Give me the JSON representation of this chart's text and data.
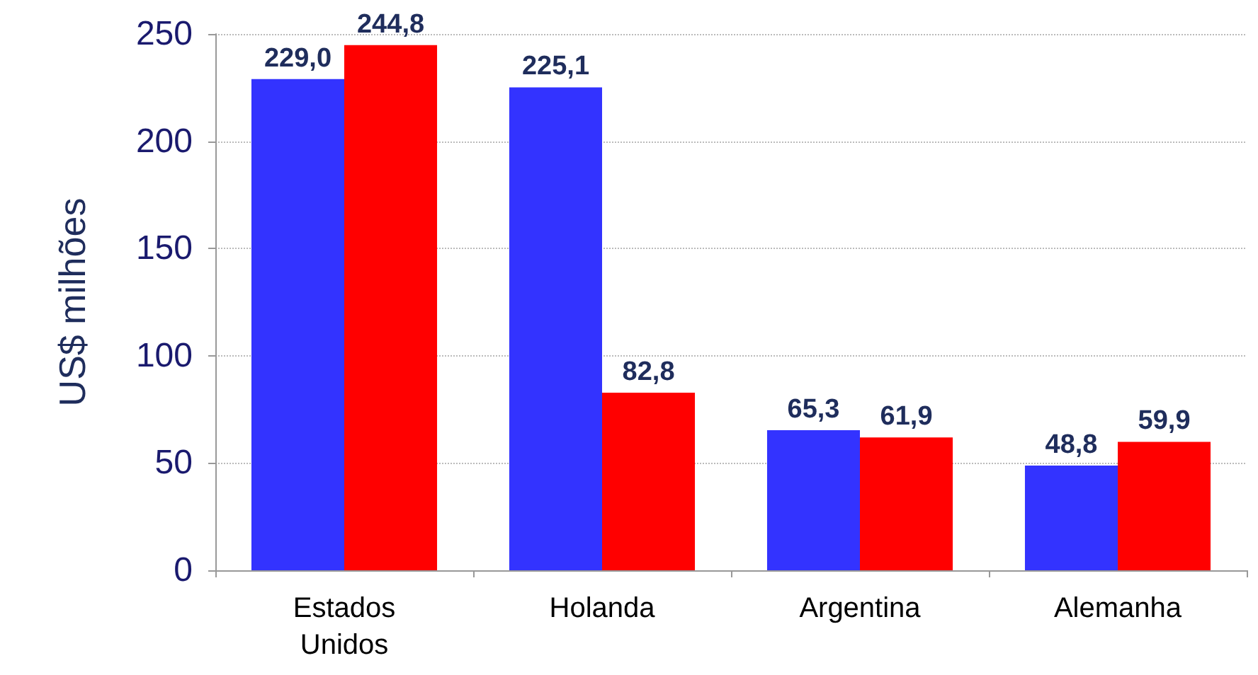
{
  "chart_data": {
    "type": "bar",
    "ylabel": "US$ milhões",
    "categories": [
      "Estados\nUnidos",
      "Holanda",
      "Argentina",
      "Alemanha"
    ],
    "series": [
      {
        "color": "#3333ff",
        "values": [
          229.0,
          225.1,
          65.3,
          48.8
        ],
        "value_labels": [
          "229,0",
          "225,1",
          "65,3",
          "48,8"
        ]
      },
      {
        "color": "#ff0000",
        "values": [
          244.8,
          82.8,
          61.9,
          59.9
        ],
        "value_labels": [
          "244,8",
          "82,8",
          "61,9",
          "59,9"
        ]
      }
    ],
    "ylim": [
      0,
      250
    ],
    "yticks": [
      0,
      50,
      100,
      150,
      200,
      250
    ],
    "grid": "y"
  }
}
